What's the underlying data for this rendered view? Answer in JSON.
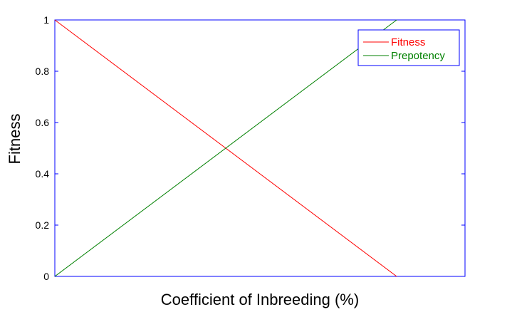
{
  "chart_data": {
    "type": "line",
    "title": "",
    "xlabel": "Coefficient of Inbreeding (%)",
    "ylabel": "Fitness",
    "xlim": [
      0,
      1.2
    ],
    "ylim": [
      0,
      1
    ],
    "xticks_visible": false,
    "yticks": [
      0,
      0.2,
      0.4,
      0.6,
      0.8,
      1
    ],
    "ytick_labels": [
      "0",
      "0.2",
      "0.4",
      "0.6",
      "0.8",
      "1"
    ],
    "grid": false,
    "legend_position": "top-right",
    "series": [
      {
        "name": "Fitness",
        "color": "#ff0000",
        "x": [
          0,
          1
        ],
        "y": [
          1,
          0
        ]
      },
      {
        "name": "Prepotency",
        "color": "#008000",
        "x": [
          0,
          1
        ],
        "y": [
          0,
          1
        ]
      }
    ],
    "axis_color": "#0000ff"
  }
}
